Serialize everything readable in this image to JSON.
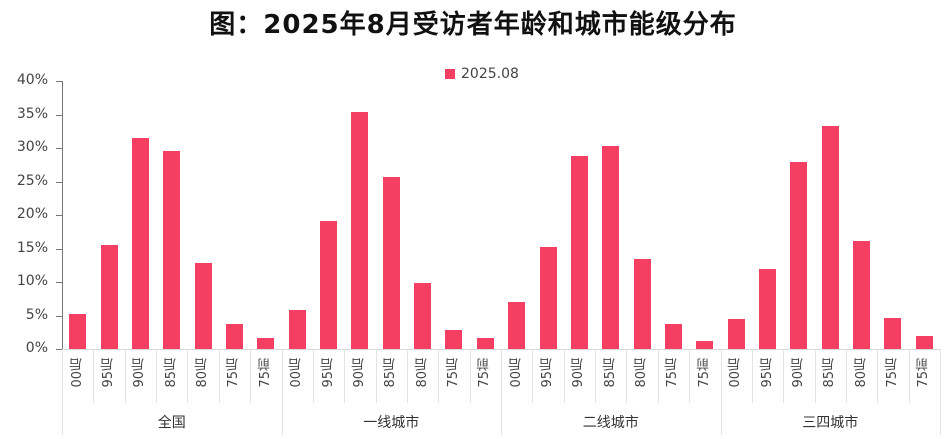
{
  "title": "图：2025年8月受访者年龄和城市能级分布",
  "colors": {
    "bar": "#F43F63"
  },
  "chart_data": {
    "type": "bar",
    "title": "图：2025年8月受访者年龄和城市能级分布",
    "xlabel": "",
    "ylabel": "",
    "ylim": [
      0,
      40
    ],
    "yticks": [
      "0%",
      "5%",
      "10%",
      "15%",
      "20%",
      "25%",
      "30%",
      "35%",
      "40%"
    ],
    "grid": false,
    "legend": {
      "position": "top-center",
      "entries": [
        "2025.08"
      ]
    },
    "groups": [
      {
        "name": "全国",
        "categories": [
          "00后",
          "95后",
          "90后",
          "85后",
          "80后",
          "75后",
          "75前"
        ],
        "values": [
          5.2,
          15.5,
          31.5,
          29.5,
          12.8,
          3.7,
          1.6
        ]
      },
      {
        "name": "一线城市",
        "categories": [
          "00后",
          "95后",
          "90后",
          "85后",
          "80后",
          "75后",
          "75前"
        ],
        "values": [
          5.8,
          19.1,
          35.3,
          25.7,
          9.9,
          2.8,
          1.6
        ]
      },
      {
        "name": "二线城市",
        "categories": [
          "00后",
          "95后",
          "90后",
          "85后",
          "80后",
          "75后",
          "75前"
        ],
        "values": [
          7.0,
          15.2,
          28.8,
          30.3,
          13.4,
          3.7,
          1.2
        ]
      },
      {
        "name": "三四城市",
        "categories": [
          "00后",
          "95后",
          "90后",
          "85后",
          "80后",
          "75后",
          "75前"
        ],
        "values": [
          4.5,
          11.9,
          27.9,
          33.3,
          16.1,
          4.6,
          1.9
        ]
      }
    ],
    "series": [
      {
        "name": "2025.08",
        "values": [
          5.2,
          15.5,
          31.5,
          29.5,
          12.8,
          3.7,
          1.6,
          5.8,
          19.1,
          35.3,
          25.7,
          9.9,
          2.8,
          1.6,
          7.0,
          15.2,
          28.8,
          30.3,
          13.4,
          3.7,
          1.2,
          4.5,
          11.9,
          27.9,
          33.3,
          16.1,
          4.6,
          1.9
        ]
      }
    ]
  }
}
